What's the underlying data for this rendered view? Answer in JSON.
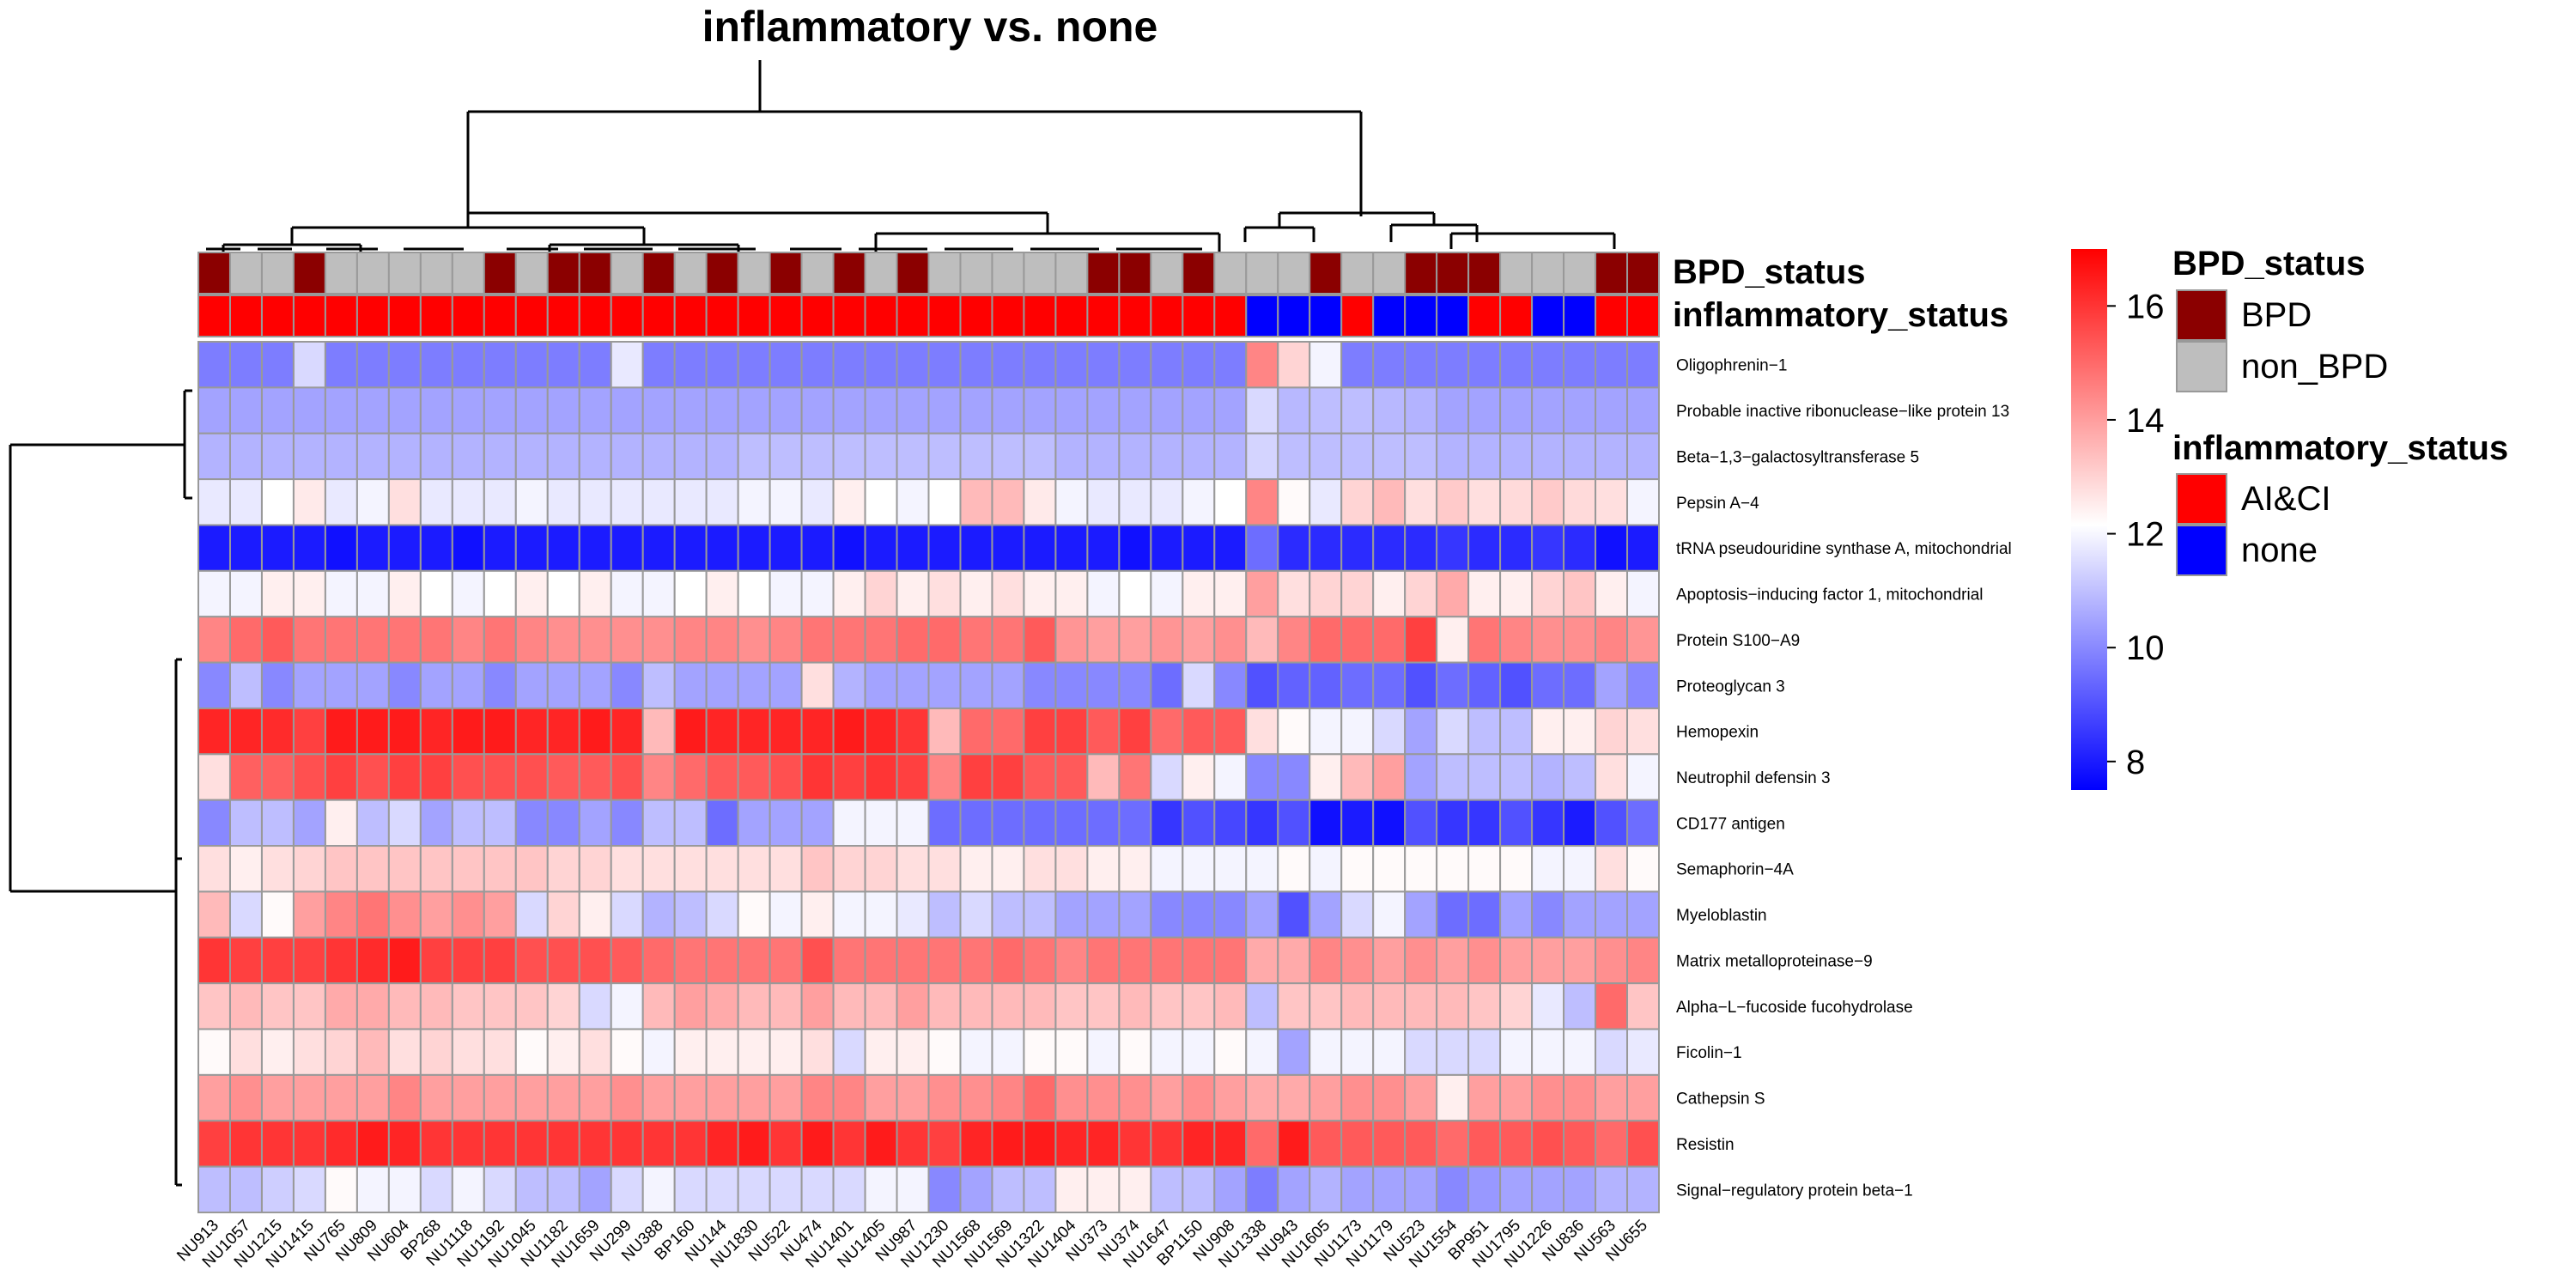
{
  "chart_data": {
    "type": "heatmap",
    "title": "inflammatory vs. none",
    "samples": [
      "NU913",
      "NU1057",
      "NU1215",
      "NU1415",
      "NU765",
      "NU809",
      "NU604",
      "BP268",
      "NU1118",
      "NU1192",
      "NU1045",
      "NU1182",
      "NU1659",
      "NU299",
      "NU388",
      "BP160",
      "NU144",
      "NU1830",
      "NU522",
      "NU474",
      "NU1401",
      "NU1405",
      "NU987",
      "NU1230",
      "NU1568",
      "NU1569",
      "NU1322",
      "NU1404",
      "NU373",
      "NU374",
      "NU1647",
      "BP1150",
      "NU908",
      "NU1338",
      "NU943",
      "NU1605",
      "NU1173",
      "NU1179",
      "NU523",
      "NU1554",
      "BP951",
      "NU1795",
      "NU1226",
      "NU836",
      "NU563",
      "NU655"
    ],
    "proteins": [
      "Oligophrenin−1",
      "Probable inactive ribonuclease−like protein 13",
      "Beta−1,3−galactosyltransferase 5",
      "Pepsin A−4",
      "tRNA pseudouridine synthase A, mitochondrial",
      "Apoptosis−inducing factor 1, mitochondrial",
      "Protein S100−A9",
      "Proteoglycan 3",
      "Hemopexin",
      "Neutrophil defensin 3",
      "CD177 antigen",
      "Semaphorin−4A",
      "Myeloblastin",
      "Matrix metalloproteinase−9",
      "Alpha−L−fucoside fucohydrolase",
      "Ficolin−1",
      "Cathepsin S",
      "Resistin",
      "Signal−regulatory protein beta−1"
    ],
    "annotations": [
      {
        "name": "BPD_status",
        "levels": [
          "BPD",
          "non_BPD"
        ],
        "colors": {
          "BPD": "#8B0000",
          "non_BPD": "#BEBEBE"
        },
        "values": [
          "BPD",
          "non_BPD",
          "non_BPD",
          "BPD",
          "non_BPD",
          "non_BPD",
          "non_BPD",
          "non_BPD",
          "non_BPD",
          "BPD",
          "non_BPD",
          "BPD",
          "BPD",
          "non_BPD",
          "BPD",
          "non_BPD",
          "BPD",
          "non_BPD",
          "BPD",
          "non_BPD",
          "BPD",
          "non_BPD",
          "BPD",
          "non_BPD",
          "non_BPD",
          "non_BPD",
          "non_BPD",
          "non_BPD",
          "BPD",
          "BPD",
          "non_BPD",
          "BPD",
          "non_BPD",
          "non_BPD",
          "non_BPD",
          "BPD",
          "non_BPD",
          "non_BPD",
          "BPD",
          "BPD",
          "BPD",
          "non_BPD",
          "non_BPD",
          "non_BPD",
          "BPD",
          "BPD"
        ]
      },
      {
        "name": "inflammatory_status",
        "levels": [
          "AI&CI",
          "none"
        ],
        "colors": {
          "AI&CI": "#FF0000",
          "none": "#0000FF"
        },
        "values": [
          "AI&CI",
          "AI&CI",
          "AI&CI",
          "AI&CI",
          "AI&CI",
          "AI&CI",
          "AI&CI",
          "AI&CI",
          "AI&CI",
          "AI&CI",
          "AI&CI",
          "AI&CI",
          "AI&CI",
          "AI&CI",
          "AI&CI",
          "AI&CI",
          "AI&CI",
          "AI&CI",
          "AI&CI",
          "AI&CI",
          "AI&CI",
          "AI&CI",
          "AI&CI",
          "AI&CI",
          "AI&CI",
          "AI&CI",
          "AI&CI",
          "AI&CI",
          "AI&CI",
          "AI&CI",
          "AI&CI",
          "AI&CI",
          "AI&CI",
          "none",
          "none",
          "none",
          "AI&CI",
          "none",
          "none",
          "none",
          "AI&CI",
          "AI&CI",
          "none",
          "none",
          "AI&CI",
          "AI&CI"
        ]
      }
    ],
    "color_scale": {
      "min": 7.5,
      "mid": 12.2,
      "max": 17.0,
      "low_color": "#0000FF",
      "mid_color": "#FFFFFF",
      "high_color": "#FF0000",
      "ticks": [
        8,
        10,
        12,
        14,
        16
      ]
    },
    "values": [
      [
        9.8,
        9.8,
        9.8,
        11.5,
        9.8,
        9.8,
        9.8,
        9.8,
        9.8,
        9.8,
        9.8,
        9.8,
        9.8,
        11.8,
        9.8,
        9.8,
        9.8,
        9.8,
        9.8,
        9.8,
        9.8,
        9.8,
        9.8,
        9.8,
        9.8,
        9.8,
        9.8,
        9.8,
        9.8,
        9.8,
        9.8,
        9.8,
        9.8,
        14.5,
        13.0,
        12.0,
        9.8,
        9.8,
        9.8,
        9.8,
        9.8,
        9.8,
        9.8,
        9.8,
        9.8,
        9.8
      ],
      [
        10.5,
        10.5,
        10.5,
        10.5,
        10.5,
        10.5,
        10.5,
        10.5,
        10.5,
        10.5,
        10.5,
        10.5,
        10.5,
        10.5,
        10.5,
        10.5,
        10.5,
        10.5,
        10.5,
        10.5,
        10.5,
        10.5,
        10.5,
        10.5,
        10.5,
        10.5,
        10.5,
        10.5,
        10.5,
        10.5,
        10.5,
        10.5,
        10.5,
        11.5,
        10.9,
        11.0,
        11.0,
        10.9,
        10.8,
        10.5,
        10.5,
        10.5,
        10.5,
        10.5,
        10.5,
        10.5
      ],
      [
        10.8,
        10.8,
        10.8,
        10.8,
        10.8,
        10.8,
        10.8,
        10.8,
        10.8,
        10.8,
        10.8,
        10.8,
        10.8,
        10.8,
        10.8,
        10.8,
        10.8,
        11.0,
        11.0,
        11.0,
        11.0,
        11.0,
        11.0,
        11.0,
        11.0,
        11.0,
        11.0,
        10.8,
        10.8,
        10.8,
        10.8,
        10.8,
        10.8,
        11.4,
        11.0,
        11.0,
        11.0,
        11.0,
        11.0,
        10.8,
        10.8,
        10.8,
        10.8,
        10.8,
        10.8,
        10.8
      ],
      [
        11.8,
        11.8,
        12.2,
        12.6,
        11.8,
        12.0,
        12.8,
        11.8,
        11.8,
        11.8,
        12.0,
        11.8,
        11.8,
        11.8,
        11.8,
        11.8,
        11.8,
        12.0,
        12.0,
        11.8,
        12.5,
        12.2,
        12.0,
        12.2,
        13.5,
        13.5,
        12.6,
        12.0,
        11.8,
        11.8,
        11.8,
        12.0,
        12.2,
        14.5,
        12.3,
        11.8,
        13.0,
        13.5,
        12.8,
        13.2,
        12.8,
        12.9,
        13.2,
        12.9,
        12.8,
        12.0
      ],
      [
        8.0,
        8.0,
        8.0,
        8.0,
        7.8,
        8.0,
        8.0,
        8.0,
        7.8,
        8.0,
        8.0,
        8.0,
        8.0,
        8.0,
        8.0,
        8.0,
        8.0,
        8.0,
        8.0,
        8.0,
        7.8,
        8.0,
        8.0,
        8.0,
        8.0,
        8.0,
        8.0,
        8.0,
        8.0,
        7.8,
        8.0,
        8.0,
        8.0,
        9.5,
        8.3,
        8.3,
        8.3,
        8.3,
        8.3,
        8.5,
        8.3,
        8.3,
        8.5,
        8.3,
        7.8,
        8.0
      ],
      [
        12.0,
        12.0,
        12.5,
        12.5,
        12.0,
        12.0,
        12.5,
        12.2,
        12.0,
        12.2,
        12.5,
        12.2,
        12.5,
        12.0,
        12.0,
        12.2,
        12.5,
        12.2,
        12.0,
        12.0,
        12.5,
        13.0,
        12.5,
        12.8,
        12.5,
        12.8,
        12.5,
        12.5,
        12.0,
        12.2,
        12.0,
        12.5,
        12.5,
        14.0,
        12.8,
        13.0,
        13.0,
        12.5,
        13.0,
        13.8,
        12.5,
        12.5,
        13.0,
        13.3,
        12.5,
        12.0
      ],
      [
        14.5,
        15.0,
        15.3,
        14.8,
        14.8,
        14.8,
        14.8,
        14.8,
        14.5,
        14.8,
        14.5,
        14.3,
        14.3,
        14.3,
        14.3,
        14.5,
        14.5,
        14.3,
        14.5,
        14.8,
        14.8,
        14.8,
        15.0,
        15.0,
        14.8,
        14.8,
        15.3,
        14.2,
        14.0,
        14.0,
        14.2,
        14.0,
        14.3,
        13.5,
        14.5,
        15.0,
        15.0,
        15.0,
        15.8,
        12.5,
        14.8,
        14.5,
        14.3,
        14.3,
        14.5,
        14.2
      ],
      [
        10.0,
        11.0,
        10.0,
        10.5,
        10.5,
        10.5,
        10.0,
        10.5,
        10.5,
        10.0,
        10.5,
        10.5,
        10.5,
        10.0,
        11.0,
        10.5,
        10.5,
        10.5,
        10.5,
        12.8,
        10.8,
        10.5,
        10.5,
        10.5,
        10.5,
        10.5,
        10.0,
        10.0,
        10.0,
        10.0,
        9.5,
        11.5,
        10.0,
        9.0,
        9.3,
        9.3,
        9.5,
        9.5,
        9.0,
        9.5,
        9.3,
        9.0,
        9.5,
        9.5,
        10.5,
        10.0
      ],
      [
        16.3,
        16.3,
        16.2,
        15.8,
        16.5,
        16.5,
        16.5,
        16.3,
        16.5,
        16.5,
        16.3,
        16.3,
        16.5,
        16.3,
        13.5,
        16.5,
        16.3,
        16.3,
        16.3,
        16.3,
        16.5,
        16.3,
        16.0,
        13.5,
        15.0,
        15.0,
        15.8,
        15.8,
        15.3,
        15.8,
        15.0,
        15.3,
        15.3,
        12.8,
        12.3,
        12.0,
        12.0,
        11.5,
        10.5,
        11.5,
        11.0,
        11.0,
        12.5,
        12.5,
        13.0,
        12.8
      ],
      [
        12.8,
        15.2,
        15.2,
        15.5,
        15.8,
        15.5,
        15.8,
        15.8,
        15.5,
        15.5,
        15.5,
        15.3,
        15.3,
        15.5,
        14.5,
        15.0,
        15.3,
        15.3,
        15.5,
        16.0,
        15.8,
        16.0,
        15.8,
        14.5,
        15.8,
        15.8,
        15.3,
        15.3,
        13.5,
        14.8,
        11.5,
        12.5,
        12.0,
        10.0,
        10.0,
        12.5,
        13.5,
        14.0,
        10.5,
        11.0,
        11.0,
        11.0,
        10.8,
        11.0,
        12.8,
        12.0
      ],
      [
        10.0,
        11.0,
        11.0,
        10.5,
        12.5,
        11.0,
        11.5,
        10.5,
        11.0,
        11.0,
        10.0,
        10.0,
        10.5,
        10.0,
        11.0,
        11.0,
        9.5,
        10.5,
        10.5,
        10.5,
        12.0,
        12.0,
        12.0,
        9.5,
        9.5,
        9.5,
        9.5,
        9.5,
        9.5,
        9.5,
        8.5,
        9.0,
        8.8,
        8.5,
        9.0,
        7.8,
        8.0,
        7.8,
        9.0,
        8.5,
        8.5,
        9.0,
        8.5,
        8.0,
        9.0,
        9.5
      ],
      [
        12.8,
        12.5,
        12.8,
        13.0,
        13.3,
        13.3,
        13.3,
        13.3,
        13.3,
        13.3,
        13.3,
        13.0,
        13.0,
        12.8,
        12.8,
        12.8,
        12.8,
        12.8,
        12.8,
        13.3,
        13.0,
        13.0,
        12.8,
        12.8,
        12.5,
        12.5,
        12.8,
        12.8,
        12.5,
        12.5,
        12.0,
        12.0,
        12.0,
        12.0,
        12.3,
        12.0,
        12.3,
        12.3,
        12.3,
        12.3,
        12.3,
        12.3,
        12.0,
        12.0,
        12.8,
        12.3
      ],
      [
        13.5,
        11.5,
        12.3,
        14.0,
        14.5,
        14.8,
        14.3,
        14.0,
        14.3,
        14.0,
        11.5,
        13.0,
        12.5,
        11.5,
        10.8,
        11.0,
        11.5,
        12.3,
        12.0,
        12.5,
        12.0,
        12.0,
        11.8,
        11.0,
        11.5,
        11.0,
        11.0,
        10.5,
        10.5,
        10.5,
        10.0,
        10.0,
        10.0,
        10.5,
        9.0,
        10.5,
        11.5,
        12.0,
        10.5,
        9.5,
        9.5,
        10.5,
        10.0,
        10.5,
        10.5,
        10.5
      ],
      [
        16.0,
        15.8,
        15.8,
        15.8,
        16.0,
        16.2,
        16.5,
        15.8,
        15.8,
        15.8,
        15.5,
        15.5,
        15.5,
        15.3,
        15.0,
        14.8,
        14.8,
        14.8,
        14.8,
        15.5,
        14.8,
        14.8,
        14.8,
        14.8,
        14.8,
        15.0,
        14.8,
        14.5,
        14.8,
        14.8,
        14.8,
        14.8,
        14.8,
        13.8,
        13.8,
        14.5,
        14.3,
        14.0,
        14.3,
        14.0,
        14.3,
        14.0,
        14.0,
        14.0,
        14.3,
        14.5
      ],
      [
        13.3,
        13.5,
        13.3,
        13.3,
        13.8,
        13.8,
        13.5,
        13.5,
        13.3,
        13.3,
        13.3,
        13.0,
        11.5,
        12.0,
        13.5,
        14.0,
        13.8,
        13.5,
        13.5,
        14.0,
        13.5,
        13.5,
        14.0,
        13.5,
        13.5,
        13.5,
        13.5,
        13.3,
        13.3,
        13.5,
        13.3,
        13.3,
        13.5,
        11.0,
        13.3,
        13.3,
        13.5,
        13.5,
        13.5,
        13.5,
        13.3,
        13.0,
        11.8,
        11.0,
        15.0,
        13.3
      ],
      [
        12.3,
        12.8,
        12.5,
        12.8,
        13.0,
        13.5,
        12.8,
        13.0,
        12.8,
        12.8,
        12.3,
        12.5,
        12.8,
        12.3,
        12.0,
        12.5,
        12.5,
        12.5,
        12.5,
        12.8,
        11.5,
        12.5,
        12.5,
        12.3,
        12.0,
        12.0,
        12.3,
        12.3,
        12.0,
        12.3,
        12.0,
        12.0,
        12.3,
        12.0,
        10.5,
        12.0,
        12.0,
        12.0,
        11.5,
        11.5,
        11.5,
        12.0,
        12.0,
        12.0,
        11.5,
        11.8
      ],
      [
        14.0,
        14.3,
        14.0,
        14.0,
        14.0,
        14.0,
        14.5,
        14.0,
        14.0,
        14.0,
        14.0,
        14.0,
        14.0,
        14.3,
        14.0,
        14.0,
        14.0,
        14.0,
        14.0,
        14.5,
        14.5,
        14.0,
        14.0,
        14.3,
        14.3,
        14.5,
        15.0,
        14.3,
        14.3,
        14.3,
        14.0,
        14.3,
        14.0,
        13.8,
        13.8,
        14.0,
        14.3,
        14.3,
        14.0,
        12.5,
        14.0,
        14.0,
        14.3,
        14.3,
        14.0,
        14.0
      ],
      [
        15.8,
        16.0,
        16.0,
        16.0,
        16.2,
        16.5,
        16.3,
        16.0,
        16.0,
        16.0,
        16.0,
        16.0,
        16.0,
        16.0,
        16.0,
        16.0,
        16.3,
        16.5,
        16.0,
        16.5,
        16.0,
        16.5,
        16.0,
        15.8,
        16.3,
        16.5,
        16.5,
        16.3,
        16.3,
        16.0,
        16.0,
        16.3,
        16.3,
        15.0,
        16.5,
        15.3,
        15.3,
        15.3,
        15.3,
        15.0,
        15.3,
        15.3,
        15.5,
        15.3,
        15.0,
        15.5
      ],
      [
        11.0,
        11.0,
        11.3,
        11.5,
        12.3,
        12.0,
        12.0,
        11.5,
        12.0,
        11.5,
        11.0,
        11.0,
        10.5,
        11.5,
        12.0,
        11.5,
        11.5,
        11.5,
        11.5,
        11.5,
        11.5,
        12.0,
        12.0,
        10.0,
        10.5,
        11.0,
        11.0,
        12.5,
        12.5,
        12.5,
        11.0,
        11.0,
        10.5,
        9.8,
        10.5,
        10.8,
        10.5,
        10.5,
        10.5,
        10.0,
        10.3,
        10.5,
        10.5,
        10.5,
        10.8,
        10.8
      ]
    ]
  }
}
